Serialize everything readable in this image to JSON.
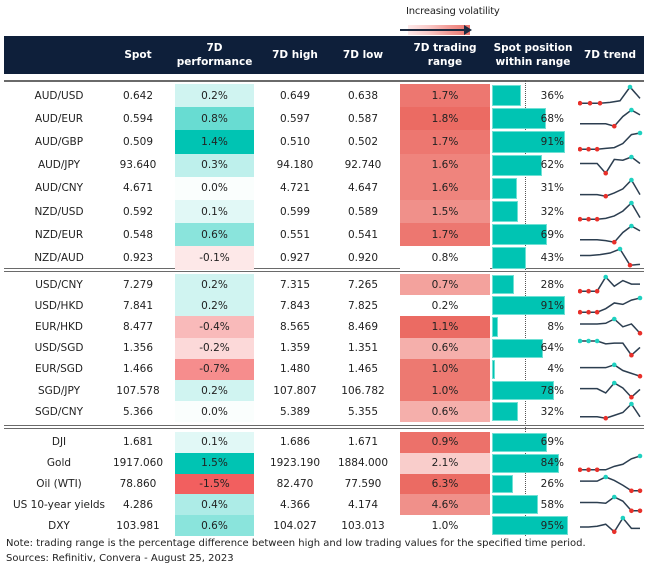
{
  "legend": {
    "label": "Increasing volatility"
  },
  "header": {
    "columns": [
      "",
      "Spot",
      "7D\nperformance",
      "7D high",
      "7D low",
      "7D trading\nrange",
      "Spot position\nwithin range",
      "7D trend"
    ]
  },
  "colors": {
    "header_bg": "#0e1f3a",
    "bar": "#00c4b3",
    "spark_line": "#2c3e50",
    "spark_high": "#1fd1c0",
    "spark_low": "#e8302a"
  },
  "groups": [
    {
      "rows": [
        {
          "name": "AUD/USD",
          "spot": "0.642",
          "perf": "0.2%",
          "perf_val": 0.2,
          "high": "0.649",
          "low": "0.638",
          "range": "1.7%",
          "range_val": 1.7,
          "pos": "36%",
          "pos_val": 0.36,
          "trend": [
            0,
            0,
            0,
            0.05,
            0.15,
            1,
            0.3
          ],
          "hi": [
            5
          ],
          "lo": [
            0,
            1,
            2
          ]
        },
        {
          "name": "AUD/EUR",
          "spot": "0.594",
          "perf": "0.8%",
          "perf_val": 0.8,
          "high": "0.597",
          "low": "0.587",
          "range": "1.8%",
          "range_val": 1.8,
          "pos": "68%",
          "pos_val": 0.68,
          "trend": [
            0.15,
            0.15,
            0.15,
            0.15,
            0,
            0.6,
            1,
            0.7
          ],
          "hi": [
            6
          ],
          "lo": [
            4
          ]
        },
        {
          "name": "AUD/GBP",
          "spot": "0.509",
          "perf": "1.4%",
          "perf_val": 1.4,
          "high": "0.510",
          "low": "0.502",
          "range": "1.7%",
          "range_val": 1.7,
          "pos": "91%",
          "pos_val": 0.91,
          "trend": [
            0,
            0,
            0,
            0.05,
            0.1,
            0.35,
            0.9,
            1
          ],
          "hi": [
            7
          ],
          "lo": [
            0,
            1,
            2
          ]
        },
        {
          "name": "AUD/JPY",
          "spot": "93.640",
          "perf": "0.3%",
          "perf_val": 0.3,
          "high": "94.180",
          "low": "92.740",
          "range": "1.6%",
          "range_val": 1.6,
          "pos": "62%",
          "pos_val": 0.62,
          "trend": [
            0.6,
            0.6,
            0.6,
            0,
            0.85,
            0.8,
            1,
            0.6
          ],
          "hi": [
            6
          ],
          "lo": [
            3
          ]
        },
        {
          "name": "AUD/CNY",
          "spot": "4.671",
          "perf": "0.0%",
          "perf_val": 0.0,
          "high": "4.721",
          "low": "4.647",
          "range": "1.6%",
          "range_val": 1.6,
          "pos": "31%",
          "pos_val": 0.31,
          "trend": [
            0.1,
            0.1,
            0.1,
            0,
            0.2,
            0.45,
            1,
            0.1
          ],
          "hi": [
            6
          ],
          "lo": [
            3
          ]
        },
        {
          "name": "NZD/USD",
          "spot": "0.592",
          "perf": "0.1%",
          "perf_val": 0.1,
          "high": "0.599",
          "low": "0.589",
          "range": "1.5%",
          "range_val": 1.5,
          "pos": "32%",
          "pos_val": 0.32,
          "trend": [
            0,
            0,
            0,
            0.05,
            0.2,
            0.5,
            1,
            0.1
          ],
          "hi": [
            6
          ],
          "lo": [
            0,
            1,
            2
          ]
        },
        {
          "name": "NZD/EUR",
          "spot": "0.548",
          "perf": "0.6%",
          "perf_val": 0.6,
          "high": "0.551",
          "low": "0.541",
          "range": "1.7%",
          "range_val": 1.7,
          "pos": "69%",
          "pos_val": 0.69,
          "trend": [
            0.15,
            0.15,
            0.15,
            0.1,
            0,
            0.6,
            1,
            0.7
          ],
          "hi": [
            6
          ],
          "lo": [
            4
          ]
        },
        {
          "name": "NZD/AUD",
          "spot": "0.923",
          "perf": "-0.1%",
          "perf_val": -0.1,
          "high": "0.927",
          "low": "0.920",
          "range": "0.8%",
          "range_val": 0.8,
          "pos": "43%",
          "pos_val": 0.43,
          "trend": [
            0.6,
            0.6,
            0.65,
            0.75,
            1,
            0,
            0.05
          ],
          "hi": [
            4
          ],
          "lo": [
            5
          ]
        }
      ]
    },
    {
      "rows": [
        {
          "name": "USD/CNY",
          "spot": "7.279",
          "perf": "0.2%",
          "perf_val": 0.2,
          "high": "7.315",
          "low": "7.265",
          "range": "0.7%",
          "range_val": 0.7,
          "pos": "28%",
          "pos_val": 0.28,
          "trend": [
            0,
            0,
            0,
            1,
            0.35,
            0.75,
            0.5,
            0.5
          ],
          "hi": [
            3
          ],
          "lo": [
            0,
            1,
            2
          ]
        },
        {
          "name": "USD/HKD",
          "spot": "7.841",
          "perf": "0.2%",
          "perf_val": 0.2,
          "high": "7.843",
          "low": "7.825",
          "range": "0.2%",
          "range_val": 0.2,
          "pos": "91%",
          "pos_val": 0.91,
          "trend": [
            0,
            0,
            0,
            0.25,
            0.65,
            0.55,
            0.85,
            1
          ],
          "hi": [
            7
          ],
          "lo": [
            0,
            1,
            2
          ]
        },
        {
          "name": "EUR/HKD",
          "spot": "8.477",
          "perf": "-0.4%",
          "perf_val": -0.4,
          "high": "8.565",
          "low": "8.469",
          "range": "1.1%",
          "range_val": 1.1,
          "pos": "8%",
          "pos_val": 0.08,
          "trend": [
            0.65,
            0.65,
            0.65,
            0.7,
            1,
            0.45,
            0.65,
            0
          ],
          "hi": [
            4
          ],
          "lo": [
            7
          ]
        },
        {
          "name": "USD/SGD",
          "spot": "1.356",
          "perf": "-0.2%",
          "perf_val": -0.2,
          "high": "1.359",
          "low": "1.351",
          "range": "0.6%",
          "range_val": 0.6,
          "pos": "64%",
          "pos_val": 0.64,
          "trend": [
            1,
            1,
            1,
            0.8,
            0.85,
            0.85,
            0,
            0.55
          ],
          "hi": [
            0,
            1,
            2
          ],
          "lo": [
            6
          ]
        },
        {
          "name": "EUR/SGD",
          "spot": "1.466",
          "perf": "-0.7%",
          "perf_val": -0.7,
          "high": "1.480",
          "low": "1.465",
          "range": "1.0%",
          "range_val": 1.0,
          "pos": "4%",
          "pos_val": 0.04,
          "trend": [
            0.6,
            0.6,
            0.6,
            0.6,
            0.8,
            0.4,
            0.2,
            0
          ],
          "hi": [
            4
          ],
          "lo": [
            7
          ]
        },
        {
          "name": "SGD/JPY",
          "spot": "107.578",
          "perf": "0.2%",
          "perf_val": 0.2,
          "high": "107.807",
          "low": "106.782",
          "range": "1.0%",
          "range_val": 1.0,
          "pos": "78%",
          "pos_val": 0.78,
          "trend": [
            0.6,
            0.6,
            0.6,
            0.3,
            1,
            0.65,
            0,
            0.55
          ],
          "hi": [
            4
          ],
          "lo": [
            6
          ]
        },
        {
          "name": "SGD/CNY",
          "spot": "5.366",
          "perf": "0.0%",
          "perf_val": 0.0,
          "high": "5.389",
          "low": "5.355",
          "range": "0.6%",
          "range_val": 0.6,
          "pos": "32%",
          "pos_val": 0.32,
          "trend": [
            0.1,
            0.1,
            0.1,
            0,
            0.2,
            0.4,
            1,
            0.1
          ],
          "hi": [
            6
          ],
          "lo": [
            3
          ]
        }
      ]
    },
    {
      "rows": [
        {
          "name": "DJI",
          "spot": "1.681",
          "perf": "0.1%",
          "perf_val": 0.1,
          "high": "1.686",
          "low": "1.671",
          "range": "0.9%",
          "range_val": 0.9,
          "pos": "69%",
          "pos_val": 0.69,
          "trend": null,
          "hi": [],
          "lo": []
        },
        {
          "name": "Gold",
          "spot": "1917.060",
          "perf": "1.5%",
          "perf_val": 1.5,
          "high": "1923.190",
          "low": "1884.000",
          "range": "2.1%",
          "range_val": 2.1,
          "pos": "84%",
          "pos_val": 0.84,
          "trend": [
            0,
            0,
            0,
            0,
            0.25,
            0.4,
            0.8,
            1
          ],
          "hi": [
            7
          ],
          "lo": [
            0,
            1,
            2
          ]
        },
        {
          "name": "Oil (WTI)",
          "spot": "78.860",
          "perf": "-1.5%",
          "perf_val": -1.5,
          "high": "82.470",
          "low": "77.590",
          "range": "6.3%",
          "range_val": 6.3,
          "pos": "26%",
          "pos_val": 0.26,
          "trend": [
            0.7,
            0.7,
            0.7,
            1,
            0.75,
            0.4,
            0,
            0
          ],
          "hi": [
            3
          ],
          "lo": [
            6,
            7
          ]
        },
        {
          "name": "US 10-year yields",
          "spot": "4.286",
          "perf": "0.4%",
          "perf_val": 0.4,
          "high": "4.366",
          "low": "4.174",
          "range": "4.6%",
          "range_val": 4.6,
          "pos": "58%",
          "pos_val": 0.58,
          "trend": [
            0.6,
            0.6,
            0.6,
            0.55,
            1,
            0.7,
            0,
            0
          ],
          "hi": [
            4
          ],
          "lo": [
            6,
            7
          ]
        },
        {
          "name": "DXY",
          "spot": "103.981",
          "perf": "0.6%",
          "perf_val": 0.6,
          "high": "104.027",
          "low": "103.013",
          "range": "1.0%",
          "range_val": 1.0,
          "pos": "95%",
          "pos_val": 0.95,
          "trend": [
            0.35,
            0.35,
            0.4,
            0.55,
            0,
            1,
            0.25,
            0.25
          ],
          "hi": [
            5
          ],
          "lo": [
            4
          ]
        }
      ]
    }
  ],
  "footer": {
    "note": "Note: trading range is the percentage difference between high and low trading values for the specified time period.",
    "source": "Sources: Refinitiv, Convera - August 25, 2023"
  }
}
